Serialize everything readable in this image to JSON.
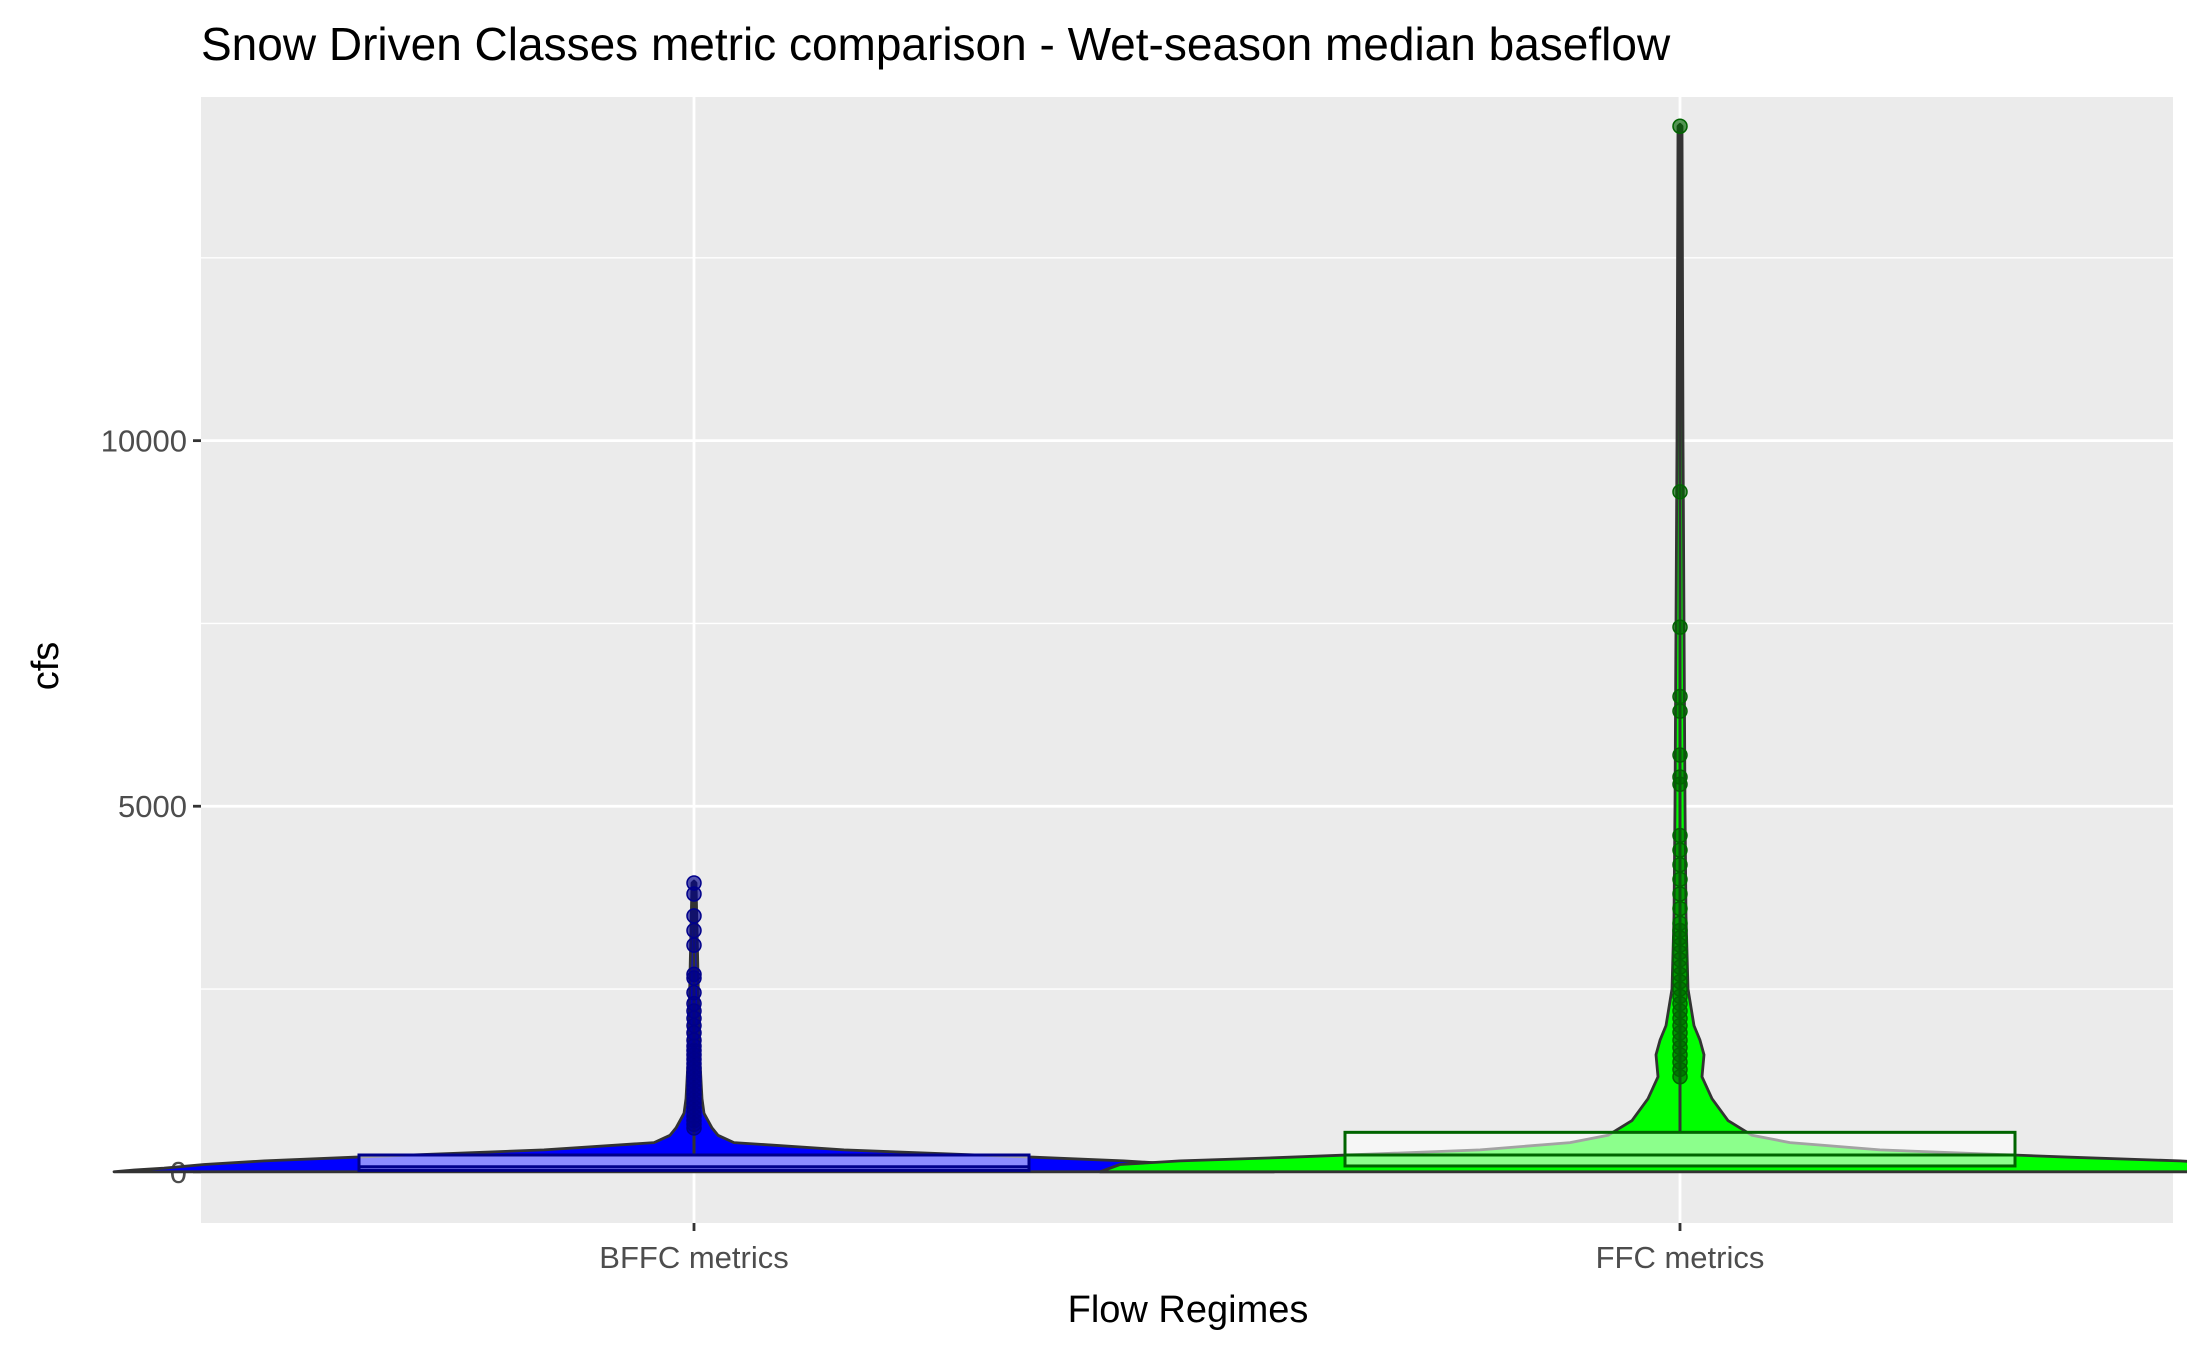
{
  "chart_data": {
    "type": "violin",
    "title": "Snow Driven Classes metric comparison - Wet-season median baseflow",
    "xlabel": "Flow Regimes",
    "ylabel": "cfs",
    "categories": [
      "BFFC metrics",
      "FFC metrics"
    ],
    "y_ticks": [
      0,
      5000,
      10000
    ],
    "ylim": [
      -700,
      14700
    ],
    "grid": true,
    "legend": "none",
    "series": [
      {
        "category": "BFFC metrics",
        "fill_color": "#0000ff",
        "box_color": "#00008b",
        "point_color": "#00008b",
        "box": {
          "q1": 20,
          "median": 70,
          "q3": 230,
          "whisker_low": 0,
          "whisker_high": 560
        },
        "max": 3950,
        "outliers": [
          600,
          650,
          700,
          760,
          820,
          880,
          940,
          1000,
          1060,
          1120,
          1180,
          1240,
          1300,
          1360,
          1420,
          1480,
          1540,
          1600,
          1660,
          1720,
          1800,
          1900,
          2000,
          2100,
          2200,
          2300,
          2450,
          2650,
          2700,
          3100,
          3300,
          3500,
          3800,
          3950
        ],
        "density": [
          [
            0,
            580
          ],
          [
            25,
            560
          ],
          [
            50,
            530
          ],
          [
            100,
            490
          ],
          [
            150,
            430
          ],
          [
            200,
            340
          ],
          [
            300,
            150
          ],
          [
            400,
            40
          ],
          [
            500,
            24
          ],
          [
            600,
            18
          ],
          [
            800,
            10
          ],
          [
            1000,
            8
          ],
          [
            1500,
            6
          ],
          [
            2000,
            5
          ],
          [
            2700,
            4
          ],
          [
            3950,
            2
          ]
        ]
      },
      {
        "category": "FFC metrics",
        "fill_color": "#00ff00",
        "box_color": "#006400",
        "point_color": "#006400",
        "box": {
          "q1": 80,
          "median": 230,
          "q3": 540,
          "whisker_low": 0,
          "whisker_high": 1250
        },
        "max": 14300,
        "outliers": [
          1300,
          1400,
          1500,
          1600,
          1700,
          1800,
          1900,
          2000,
          2100,
          2200,
          2300,
          2400,
          2500,
          2600,
          2700,
          2800,
          2900,
          3000,
          3100,
          3200,
          3300,
          3400,
          3600,
          3800,
          4000,
          4200,
          4400,
          4600,
          5300,
          5400,
          5700,
          6300,
          6500,
          7450,
          9300,
          14300
        ],
        "density": [
          [
            0,
            580
          ],
          [
            25,
            575
          ],
          [
            100,
            560
          ],
          [
            150,
            500
          ],
          [
            200,
            390
          ],
          [
            300,
            200
          ],
          [
            400,
            110
          ],
          [
            500,
            72
          ],
          [
            700,
            48
          ],
          [
            1000,
            32
          ],
          [
            1300,
            22
          ],
          [
            1600,
            24
          ],
          [
            1800,
            20
          ],
          [
            2000,
            14
          ],
          [
            2500,
            8
          ],
          [
            3500,
            6
          ],
          [
            5000,
            5
          ],
          [
            7500,
            4
          ],
          [
            10000,
            3
          ],
          [
            14300,
            2
          ]
        ]
      }
    ]
  }
}
